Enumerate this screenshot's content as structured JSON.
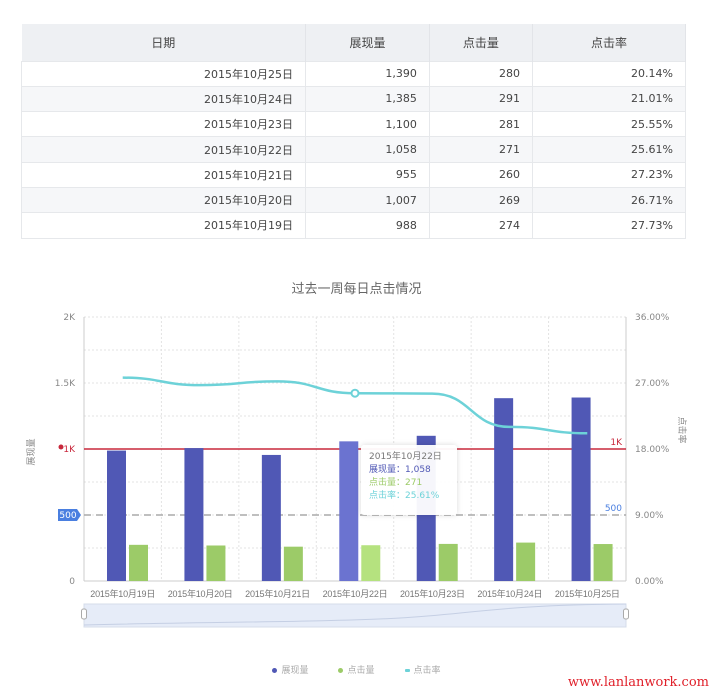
{
  "table": {
    "headers": [
      "日期",
      "展现量",
      "点击量",
      "点击率"
    ],
    "rows": [
      [
        "2015年10月25日",
        "1,390",
        "280",
        "20.14%"
      ],
      [
        "2015年10月24日",
        "1,385",
        "291",
        "21.01%"
      ],
      [
        "2015年10月23日",
        "1,100",
        "281",
        "25.55%"
      ],
      [
        "2015年10月22日",
        "1,058",
        "271",
        "25.61%"
      ],
      [
        "2015年10月21日",
        "955",
        "260",
        "27.23%"
      ],
      [
        "2015年10月20日",
        "1,007",
        "269",
        "26.71%"
      ],
      [
        "2015年10月19日",
        "988",
        "274",
        "27.73%"
      ]
    ]
  },
  "chart_data": {
    "type": "bar",
    "title": "过去一周每日点击情况",
    "categories": [
      "2015年10月19日",
      "2015年10月20日",
      "2015年10月21日",
      "2015年10月22日",
      "2015年10月23日",
      "2015年10月24日",
      "2015年10月25日"
    ],
    "series": [
      {
        "name": "展现量",
        "type": "bar",
        "axis": "left",
        "color": "#5058b5",
        "values": [
          988,
          1007,
          955,
          1058,
          1100,
          1385,
          1390
        ]
      },
      {
        "name": "点击量",
        "type": "bar",
        "axis": "left",
        "color": "#9ccb68",
        "values": [
          274,
          269,
          260,
          271,
          281,
          291,
          280
        ]
      },
      {
        "name": "点击率",
        "type": "line",
        "axis": "right",
        "color": "#6dd2d8",
        "values": [
          27.73,
          26.71,
          27.23,
          25.61,
          25.55,
          21.01,
          20.14
        ]
      }
    ],
    "ylabel": "展现量",
    "y2label": "点击率",
    "ylim": [
      0,
      2000
    ],
    "yticks": [
      "0",
      "500",
      "1K",
      "1.5K",
      "2K"
    ],
    "y2lim": [
      0,
      36
    ],
    "y2ticks": [
      "0.00%",
      "9.00%",
      "18.00%",
      "27.00%",
      "36.00%"
    ],
    "marklines": [
      {
        "value": 1000,
        "label": "1K",
        "color": "#c8283c"
      },
      {
        "value": 500,
        "label": "500",
        "color": "#aaaaaa"
      }
    ],
    "grid": true,
    "legend": "bottom",
    "highlight_index": 3
  },
  "tooltip": {
    "title": "2015年10月22日",
    "l1": "展现量：1,058",
    "l2": "点击量：271",
    "l3": "点击率：25.61%"
  },
  "watermark": "www.lanlanwork.com"
}
